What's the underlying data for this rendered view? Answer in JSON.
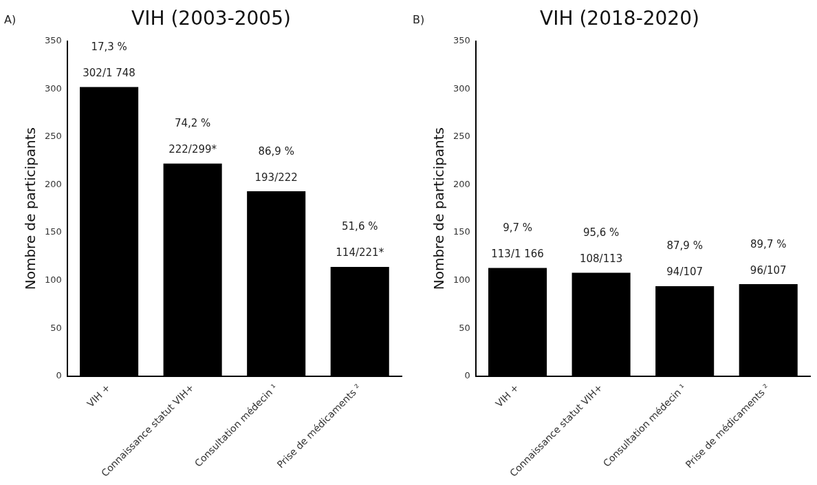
{
  "chart_data": [
    {
      "type": "bar",
      "title": "VIH (2003-2005)",
      "ylabel": "Nombre de participants",
      "categories": [
        "VIH +",
        "Connaissance statut VIH+",
        "Consultation médecin ¹",
        "Prise de médicaments ²"
      ],
      "values": [
        302,
        222,
        193,
        114
      ],
      "color": "#000000",
      "value_labels": [
        "17,3 %\n302/1 748",
        "74,2 %\n222/299*",
        "86,9 %\n193/222",
        "51,6 %\n114/221*"
      ],
      "ylim": [
        0,
        350
      ],
      "yticks": [
        0,
        50,
        100,
        150,
        200,
        250,
        300,
        350
      ],
      "grid": false,
      "annotations": [
        "A)"
      ]
    },
    {
      "type": "bar",
      "title": "VIH (2018-2020)",
      "ylabel": "Nombre de participants",
      "categories": [
        "VIH +",
        "Connaissance statut VIH+",
        "Consultation médecin ¹",
        "Prise de médicaments ²"
      ],
      "values": [
        113,
        108,
        94,
        96
      ],
      "color": "#000000",
      "value_labels": [
        "9,7 %\n113/1 166",
        "95,6 %\n108/113",
        "87,9 %\n94/107",
        "89,7 %\n96/107"
      ],
      "ylim": [
        0,
        350
      ],
      "yticks": [
        0,
        50,
        100,
        150,
        200,
        250,
        300,
        350
      ],
      "grid": false,
      "annotations": [
        "B)"
      ]
    }
  ]
}
